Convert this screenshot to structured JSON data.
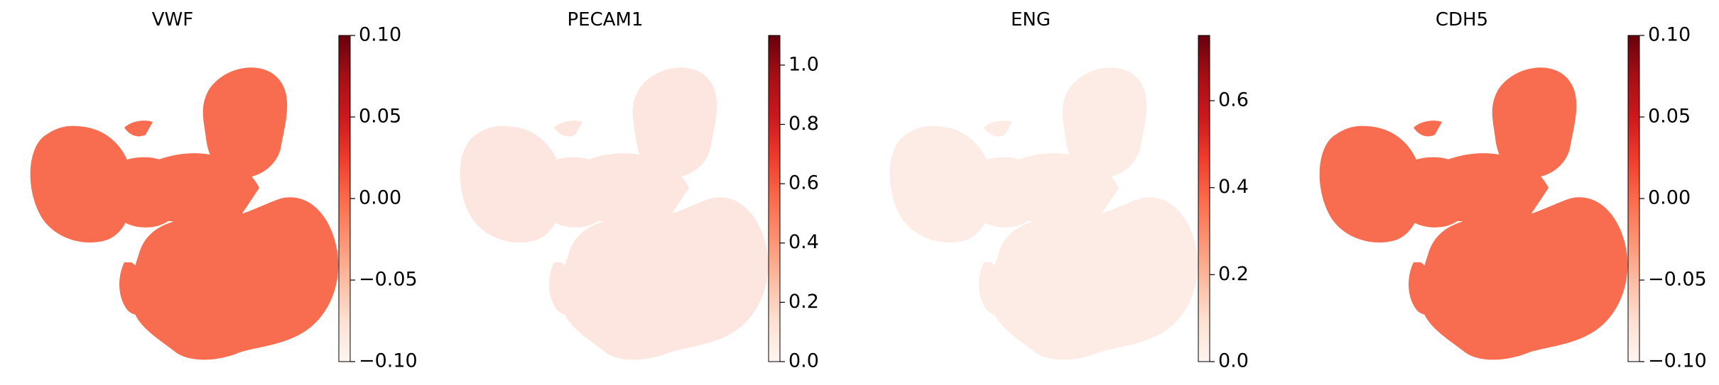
{
  "chart_data": [
    {
      "type": "scatter",
      "title": "VWF",
      "colormap": "Reds",
      "colorbar": {
        "range": [
          -0.1,
          0.1
        ],
        "ticks": [
          -0.1,
          -0.05,
          0.0,
          0.05,
          0.1
        ],
        "tick_labels": [
          "−0.10",
          "−0.05",
          "0.00",
          "0.05",
          "0.10"
        ]
      },
      "expression_level": 0.0,
      "point_color": "#f86c50",
      "axes": "off"
    },
    {
      "type": "scatter",
      "title": "PECAM1",
      "colormap": "Reds",
      "colorbar": {
        "range": [
          0.0,
          1.1
        ],
        "ticks": [
          0.0,
          0.2,
          0.4,
          0.6,
          0.8,
          1.0
        ],
        "tick_labels": [
          "0.0",
          "0.2",
          "0.4",
          "0.6",
          "0.8",
          "1.0"
        ]
      },
      "expression_level": 0.05,
      "point_color": "#fde6df",
      "axes": "off"
    },
    {
      "type": "scatter",
      "title": "ENG",
      "colormap": "Reds",
      "colorbar": {
        "range": [
          0.0,
          0.75
        ],
        "ticks": [
          0.0,
          0.2,
          0.4,
          0.6
        ],
        "tick_labels": [
          "0.0",
          "0.2",
          "0.4",
          "0.6"
        ]
      },
      "expression_level": 0.03,
      "point_color": "#fdece6",
      "axes": "off"
    },
    {
      "type": "scatter",
      "title": "CDH5",
      "colormap": "Reds",
      "colorbar": {
        "range": [
          -0.1,
          0.1
        ],
        "ticks": [
          -0.1,
          -0.05,
          0.0,
          0.05,
          0.1
        ],
        "tick_labels": [
          "−0.10",
          "−0.05",
          "0.00",
          "0.05",
          "0.10"
        ]
      },
      "expression_level": 0.0,
      "point_color": "#f86c50",
      "axes": "off"
    }
  ],
  "colors": {
    "colormap_stops": [
      "#fff5f0",
      "#fee0d2",
      "#fcbba1",
      "#fc9272",
      "#fb6a4a",
      "#ef3b2c",
      "#cb181d",
      "#a50f15",
      "#67000d"
    ],
    "dense_speckle": "#e2573e",
    "light_speckle": "#d9786a"
  }
}
